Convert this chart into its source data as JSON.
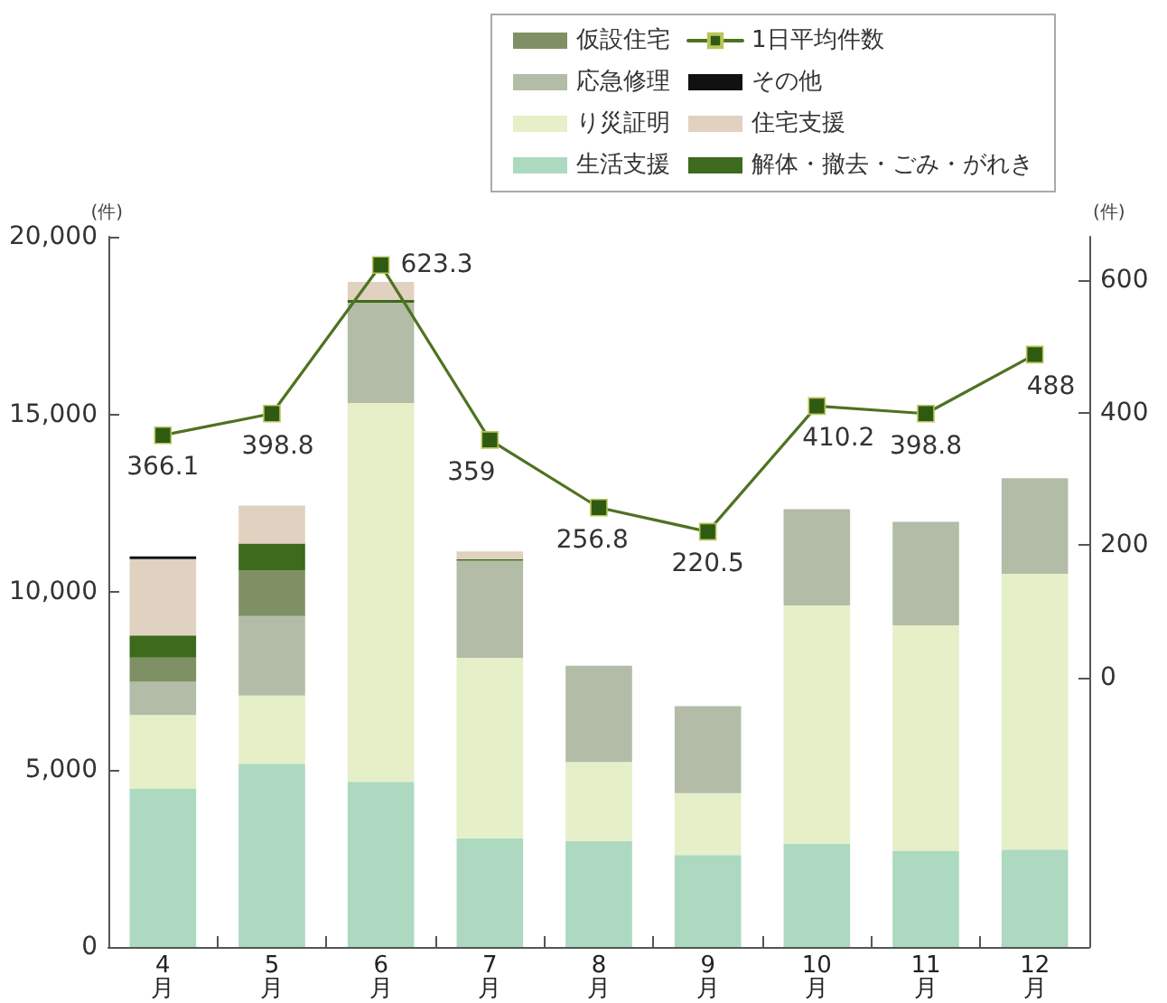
{
  "chart_data": {
    "type": "bar",
    "stacked": true,
    "categories": [
      "4月",
      "5月",
      "6月",
      "7月",
      "8月",
      "9月",
      "10月",
      "11月",
      "12月"
    ],
    "series": [
      {
        "name": "生活支援",
        "color": "#acd9c0",
        "values": [
          4450,
          5160,
          4650,
          3060,
          2980,
          2590,
          2900,
          2710,
          2740
        ]
      },
      {
        "name": "り災証明",
        "color": "#e5efc8",
        "values": [
          2080,
          1920,
          10670,
          5080,
          2230,
          1740,
          6720,
          6350,
          7770
        ]
      },
      {
        "name": "応急修理",
        "color": "#b2bca6",
        "values": [
          940,
          2240,
          2820,
          2740,
          2710,
          2450,
          2710,
          2910,
          2690
        ]
      },
      {
        "name": "仮設住宅",
        "color": "#7f9064",
        "values": [
          680,
          1290,
          0,
          0,
          0,
          0,
          0,
          0,
          0
        ]
      },
      {
        "name": "解体・撤去・ごみ・がれき",
        "color": "#3d6a1c",
        "values": [
          620,
          750,
          80,
          40,
          0,
          0,
          0,
          0,
          0
        ]
      },
      {
        "name": "住宅支援",
        "color": "#e1d1c0",
        "values": [
          2150,
          1070,
          510,
          220,
          0,
          0,
          0,
          0,
          0
        ]
      },
      {
        "name": "その他",
        "color": "#111111",
        "values": [
          80,
          0,
          0,
          0,
          0,
          0,
          0,
          0,
          0
        ]
      },
      {
        "name": "1日平均件数",
        "type": "line",
        "axis": "y2",
        "color": "#4f7221",
        "values": [
          366.1,
          398.8,
          623.3,
          359,
          256.8,
          220.5,
          410.2,
          398.8,
          488
        ],
        "value_labels": [
          "366.1",
          "398.8",
          "623.3",
          "359",
          "256.8",
          "220.5",
          "410.2",
          "398.8",
          "488"
        ]
      }
    ],
    "ylim": [
      0,
      20000
    ],
    "yticks": [
      0,
      {
        "value": 5000,
        "label": "5,000"
      },
      {
        "value": 10000,
        "label": "10,000"
      },
      {
        "value": 15000,
        "label": "15,000"
      },
      {
        "value": 20000,
        "label": "20,000"
      }
    ],
    "y2lim": [
      -407,
      666
    ],
    "y2ticks": [
      0,
      200,
      400,
      600
    ],
    "ylabel": "(件)",
    "y2label": "(件)",
    "legend": "top right",
    "marker": "square"
  }
}
